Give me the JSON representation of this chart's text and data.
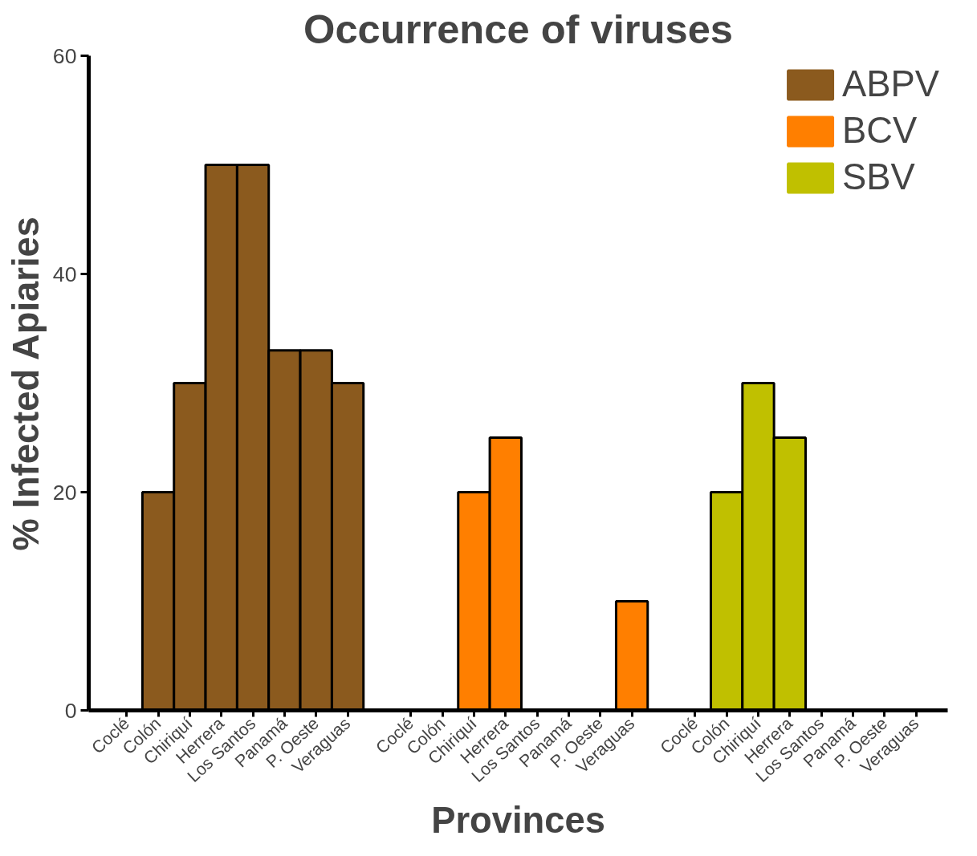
{
  "chart_data": {
    "type": "bar",
    "title": "Occurrence of viruses",
    "xlabel": "Provinces",
    "ylabel": "% Infected Apiaries",
    "categories": [
      "Coclé",
      "Colón",
      "Chiriquí",
      "Herrera",
      "Los Santos",
      "Panamá",
      "P. Oeste",
      "Veraguas",
      "Coclé",
      "Colón",
      "Chiriquí",
      "Herrera",
      "Los Santos",
      "Panamá",
      "P. Oeste",
      "Veraguas",
      "Coclé",
      "Colón",
      "Chiriquí",
      "Herrera",
      "Los Santos",
      "Panamá",
      "P. Oeste",
      "Veraguas"
    ],
    "series": [
      {
        "name": "ABPV",
        "color": "#8b5a1e",
        "values": [
          0,
          20,
          30,
          50,
          50,
          33,
          33,
          30,
          null,
          null,
          null,
          null,
          null,
          null,
          null,
          null,
          null,
          null,
          null,
          null,
          null,
          null,
          null,
          null
        ]
      },
      {
        "name": "BCV",
        "color": "#ff7f00",
        "values": [
          null,
          null,
          null,
          null,
          null,
          null,
          null,
          null,
          0,
          0,
          20,
          25,
          0,
          0,
          0,
          10,
          null,
          null,
          null,
          null,
          null,
          null,
          null,
          null
        ]
      },
      {
        "name": "SBV",
        "color": "#c0c000",
        "values": [
          null,
          null,
          null,
          null,
          null,
          null,
          null,
          null,
          null,
          null,
          null,
          null,
          null,
          null,
          null,
          null,
          0,
          20,
          30,
          25,
          0,
          0,
          0,
          0
        ]
      }
    ],
    "ylim": [
      0,
      60
    ],
    "yticks": [
      0,
      20,
      40,
      60
    ],
    "grid": false,
    "legend": "top right"
  }
}
